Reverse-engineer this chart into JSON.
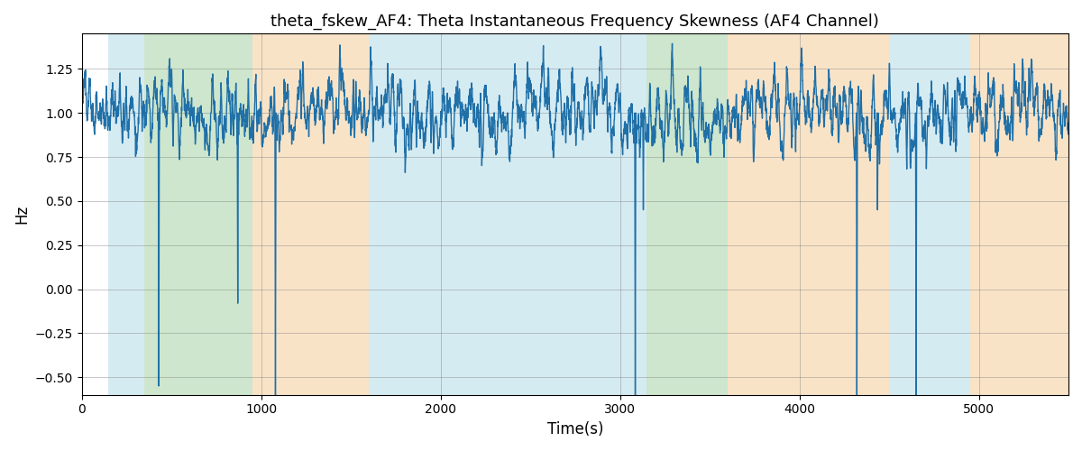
{
  "title": "theta_fskew_AF4: Theta Instantaneous Frequency Skewness (AF4 Channel)",
  "xlabel": "Time(s)",
  "ylabel": "Hz",
  "xlim": [
    0,
    5500
  ],
  "ylim": [
    -0.6,
    1.45
  ],
  "line_color": "#2070a8",
  "line_width": 1.0,
  "bg_regions": [
    {
      "xstart": 150,
      "xend": 350,
      "color": "#add8e6",
      "alpha": 0.5
    },
    {
      "xstart": 350,
      "xend": 950,
      "color": "#90c990",
      "alpha": 0.45
    },
    {
      "xstart": 950,
      "xend": 1600,
      "color": "#f5c890",
      "alpha": 0.5
    },
    {
      "xstart": 1600,
      "xend": 3050,
      "color": "#add8e6",
      "alpha": 0.5
    },
    {
      "xstart": 3050,
      "xend": 3150,
      "color": "#add8e6",
      "alpha": 0.5
    },
    {
      "xstart": 3150,
      "xend": 3600,
      "color": "#90c990",
      "alpha": 0.45
    },
    {
      "xstart": 3600,
      "xend": 4500,
      "color": "#f5c890",
      "alpha": 0.5
    },
    {
      "xstart": 4500,
      "xend": 4950,
      "color": "#add8e6",
      "alpha": 0.5
    },
    {
      "xstart": 4950,
      "xend": 5500,
      "color": "#f5c890",
      "alpha": 0.5
    }
  ],
  "grid": true,
  "seed": 42,
  "n_points": 5500,
  "dip_locations": [
    430,
    870,
    1080,
    3085,
    3130,
    4320,
    4435,
    4650
  ],
  "dip_depths": [
    -1.55,
    -1.08,
    -1.65,
    -1.65,
    -0.55,
    -1.65,
    -0.55,
    -1.65
  ],
  "dip_half_widths": [
    4,
    4,
    4,
    4,
    4,
    4,
    4,
    4
  ]
}
